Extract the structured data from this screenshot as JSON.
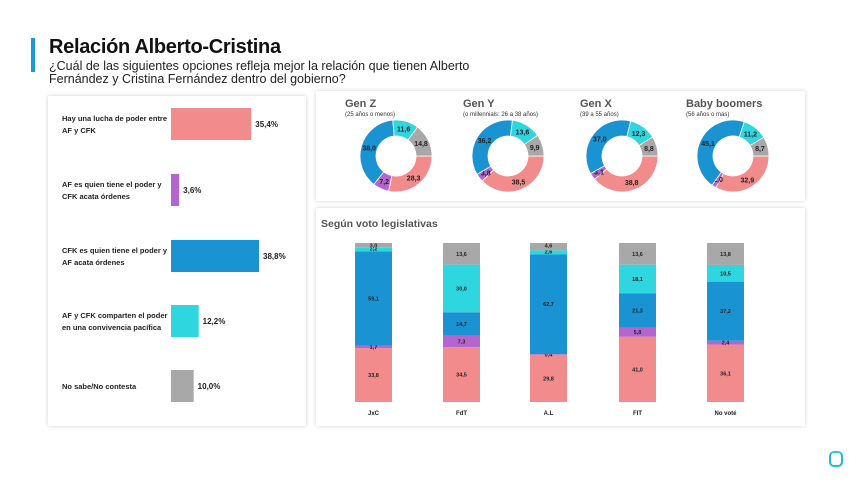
{
  "header": {
    "title": "Relación Alberto-Cristina",
    "subtitle": "¿Cuál de las siguientes opciones refleja mejor la relación que tienen Alberto Fernández y Cristina Fernández dentro del gobierno?"
  },
  "colors": {
    "pink": "#f28b8b",
    "purple": "#b565cf",
    "blue": "#1a93d2",
    "cyan": "#2ed6e0",
    "gray": "#a8a8a8",
    "accent": "#1a9bd7"
  },
  "chart_data": [
    {
      "type": "bar",
      "orientation": "horizontal",
      "categories": [
        [
          "Hay una lucha de poder entre",
          "AF y CFK"
        ],
        [
          "AF es quien tiene el poder y",
          "CFK acata órdenes"
        ],
        [
          "CFK es quien tiene el poder y",
          "AF acata órdenes"
        ],
        [
          "AF y CFK  comparten el poder",
          "en una convivencia pacífica"
        ],
        [
          "No sabe/No contesta"
        ]
      ],
      "values": [
        35.4,
        3.6,
        38.8,
        12.2,
        10.0
      ],
      "value_labels": [
        "35,4%",
        "3,6%",
        "38,8%",
        "12,2%",
        "10,0%"
      ],
      "colors": [
        "#f28b8b",
        "#b565cf",
        "#1a93d2",
        "#2ed6e0",
        "#a8a8a8"
      ]
    },
    {
      "type": "pie",
      "variant": "donut",
      "groups": [
        {
          "name": "Gen Z",
          "note": "(25 años o menos)",
          "values": [
            28.3,
            7.2,
            38.0,
            11.6,
            14.8
          ],
          "labels": [
            "28,3",
            "7,2",
            "38,0",
            "11,6",
            "14,8"
          ]
        },
        {
          "name": "Gen Y",
          "note": "(o millennials: 26 a 38 años)",
          "values": [
            38.5,
            3.8,
            36.2,
            13.6,
            9.9
          ],
          "labels": [
            "38,5",
            "3,8",
            "36,2",
            "13,6",
            "9,9"
          ]
        },
        {
          "name": "Gen X",
          "note": "(39 a 55 años)",
          "values": [
            38.8,
            3.1,
            37.0,
            12.3,
            8.8
          ],
          "labels": [
            "38,8",
            "3,1",
            "37,0",
            "12,3",
            "8,8"
          ]
        },
        {
          "name": "Baby boomers",
          "note": "(56 años o más)",
          "values": [
            32.9,
            2.0,
            45.1,
            11.2,
            8.7
          ],
          "labels": [
            "32,9",
            "2,0",
            "45,1",
            "11,2",
            "8,7"
          ]
        }
      ],
      "slice_order": [
        "Hay una lucha de poder",
        "AF tiene el poder",
        "CFK tiene el poder",
        "Comparten el poder",
        "No sabe/No contesta"
      ]
    },
    {
      "type": "bar",
      "stacked": true,
      "title": "Según voto legislativas",
      "categories": [
        "JxC",
        "FdT",
        "A.L",
        "FIT",
        "No voté"
      ],
      "series": [
        {
          "values": [
            33.8,
            34.5,
            29.8,
            41.0,
            36.1
          ],
          "labels": [
            "33,8",
            "34,5",
            "29,8",
            "41,0",
            "36,1"
          ]
        },
        {
          "values": [
            1.7,
            7.3,
            0.4,
            5.8,
            2.4
          ],
          "labels": [
            "1,7",
            "7,3",
            "0,4",
            "5,8",
            "2,4"
          ]
        },
        {
          "values": [
            59.1,
            14.7,
            62.7,
            21.3,
            37.2
          ],
          "labels": [
            "59,1",
            "14,7",
            "62,7",
            "21,3",
            "37,2"
          ]
        },
        {
          "values": [
            2.2,
            30.0,
            2.6,
            18.1,
            10.5
          ],
          "labels": [
            "2,2",
            "30,0",
            "2,6",
            "18,1",
            "10,5"
          ]
        },
        {
          "values": [
            3.0,
            13.6,
            4.6,
            13.6,
            13.8
          ],
          "labels": [
            "3,0",
            "13,6",
            "4,6",
            "13,6",
            "13,8"
          ]
        }
      ],
      "ylim": [
        0,
        100
      ]
    }
  ]
}
